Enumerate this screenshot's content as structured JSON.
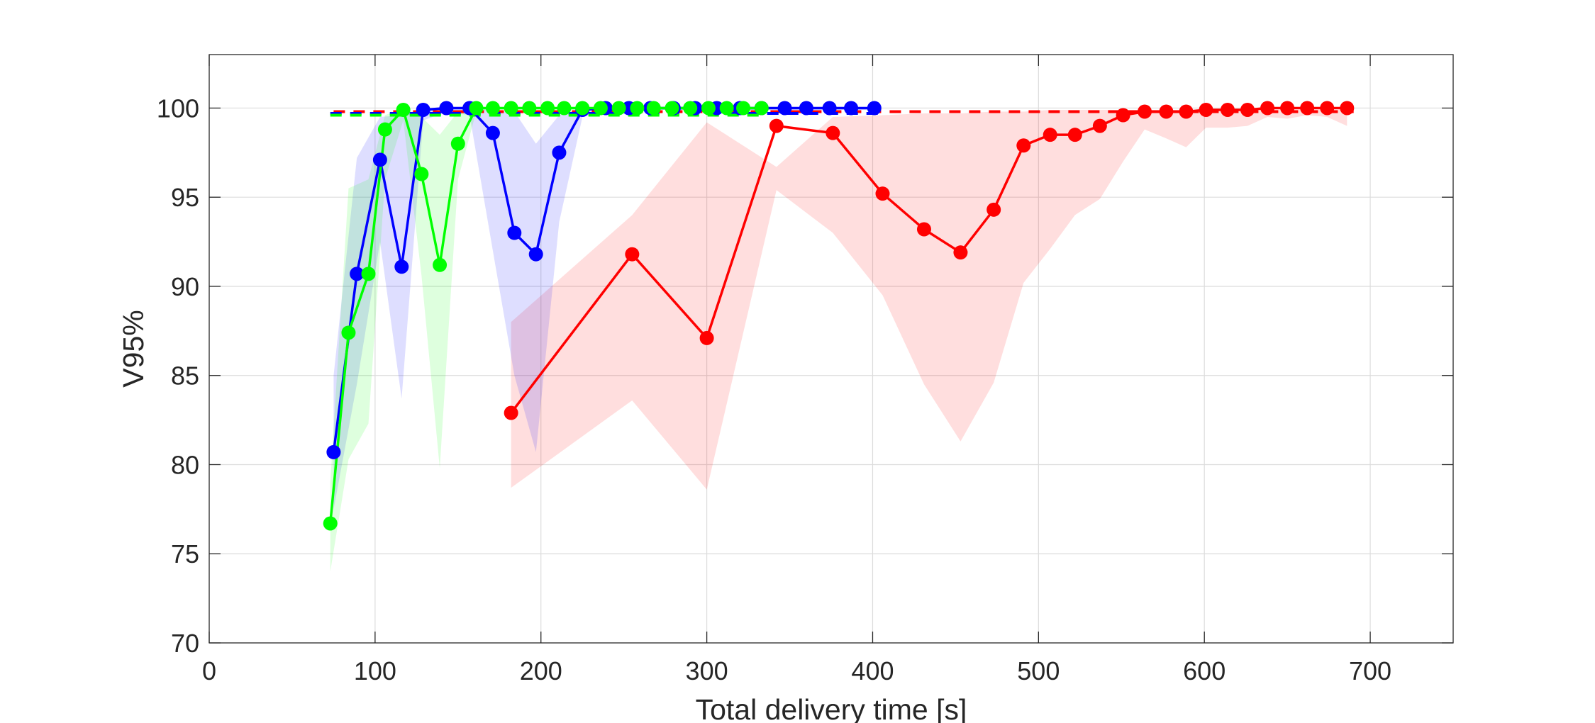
{
  "chart_data": {
    "type": "line",
    "xlabel": "Total delivery time [s]",
    "ylabel": "V95%",
    "xlim": [
      0,
      750
    ],
    "ylim": [
      70,
      103
    ],
    "xticks": [
      0,
      100,
      200,
      300,
      400,
      500,
      600,
      700
    ],
    "yticks": [
      70,
      75,
      80,
      85,
      90,
      95,
      100
    ],
    "grid": true,
    "series": [
      {
        "color": "#ff0000",
        "x": [
          182,
          255,
          300,
          342,
          376,
          406,
          431,
          453,
          473,
          491,
          507,
          522,
          537,
          551,
          564,
          577,
          589,
          601,
          614,
          626,
          638,
          650,
          662,
          674,
          686
        ],
        "y": [
          82.9,
          91.8,
          87.1,
          99.0,
          98.6,
          95.2,
          93.2,
          91.9,
          94.3,
          97.9,
          98.5,
          98.5,
          99.0,
          99.6,
          99.8,
          99.8,
          99.8,
          99.9,
          99.9,
          99.9,
          100.0,
          100.0,
          100.0,
          100.0,
          100.0
        ],
        "band_upper": [
          88.0,
          94.0,
          99.2,
          96.7,
          99.5,
          99.6,
          99.7,
          99.7,
          99.8,
          99.8,
          99.9,
          99.9,
          99.9,
          99.9,
          99.9,
          99.9,
          99.9,
          99.9,
          99.9,
          99.9,
          99.9,
          99.9,
          99.9,
          99.9,
          99.9
        ],
        "band_lower": [
          78.7,
          83.6,
          78.6,
          95.4,
          93.0,
          89.5,
          84.5,
          81.3,
          84.6,
          90.2,
          92.1,
          94.0,
          94.9,
          97.0,
          98.8,
          98.3,
          97.8,
          98.9,
          98.9,
          99.0,
          99.5,
          99.4,
          99.6,
          99.5,
          99.0
        ],
        "dashed_level": 99.8,
        "dashed_range": [
          75,
          690
        ]
      },
      {
        "color": "#0000ff",
        "x": [
          75,
          89,
          103,
          116,
          129,
          143,
          157,
          171,
          184,
          197,
          211,
          225,
          239,
          253,
          266,
          280,
          293,
          306,
          320,
          333,
          347,
          360,
          374,
          387,
          401
        ],
        "y": [
          80.7,
          90.7,
          97.1,
          91.1,
          99.9,
          100.0,
          100.0,
          98.6,
          93.0,
          91.8,
          97.5,
          99.9,
          100.0,
          100.0,
          100.0,
          100.0,
          100.0,
          100.0,
          100.0,
          100.0,
          100.0,
          100.0,
          100.0,
          100.0,
          100.0
        ],
        "band_upper": [
          85.0,
          97.2,
          99.5,
          99.6,
          100.0,
          100.0,
          100.0,
          99.9,
          99.8,
          98.0,
          99.6,
          100.0,
          100.0,
          100.0,
          100.0,
          100.0,
          100.0,
          100.0,
          100.0,
          100.0,
          100.0,
          100.0,
          100.0,
          100.0,
          100.0
        ],
        "band_lower": [
          77.5,
          84.5,
          92.5,
          83.7,
          99.3,
          99.8,
          99.6,
          92.0,
          85.0,
          80.7,
          93.6,
          99.5,
          99.8,
          99.9,
          99.9,
          99.9,
          99.9,
          99.9,
          99.9,
          99.9,
          99.9,
          99.9,
          99.9,
          99.9,
          99.9
        ],
        "dashed_level": 99.7,
        "dashed_range": [
          73,
          405
        ]
      },
      {
        "color": "#00ff00",
        "x": [
          73,
          84,
          96,
          106,
          117,
          128,
          139,
          150,
          161,
          171,
          182,
          193,
          204,
          214,
          225,
          236,
          247,
          258,
          268,
          279,
          290,
          301,
          312,
          322,
          333
        ],
        "y": [
          76.7,
          87.4,
          90.7,
          98.8,
          99.9,
          96.3,
          91.2,
          98.0,
          100.0,
          100.0,
          100.0,
          100.0,
          100.0,
          100.0,
          100.0,
          100.0,
          100.0,
          100.0,
          100.0,
          100.0,
          100.0,
          100.0,
          100.0,
          100.0,
          100.0
        ],
        "band_upper": [
          79.0,
          95.5,
          96.0,
          99.6,
          100.0,
          99.5,
          98.5,
          99.8,
          100.0,
          100.0,
          100.0,
          100.0,
          100.0,
          100.0,
          100.0,
          100.0,
          100.0,
          100.0,
          100.0,
          100.0,
          100.0,
          100.0,
          100.0,
          100.0,
          100.0
        ],
        "band_lower": [
          74.0,
          80.3,
          82.3,
          96.0,
          99.3,
          90.6,
          79.8,
          96.0,
          99.8,
          99.9,
          99.9,
          99.9,
          99.9,
          99.9,
          99.9,
          99.9,
          99.9,
          99.9,
          99.9,
          99.9,
          99.9,
          99.9,
          99.9,
          99.9,
          99.9
        ],
        "dashed_level": 99.6,
        "dashed_range": [
          73,
          335
        ]
      }
    ]
  }
}
